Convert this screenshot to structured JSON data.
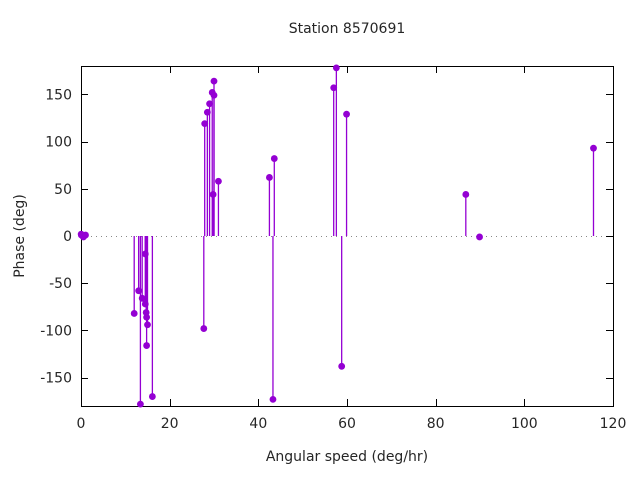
{
  "title": "Station 8570691",
  "chart_data": {
    "type": "stem",
    "title": "Station 8570691",
    "xlabel": "Angular speed (deg/hr)",
    "ylabel": "Phase (deg)",
    "xlim": [
      0,
      120
    ],
    "ylim": [
      -180,
      180
    ],
    "xticks": [
      0,
      20,
      40,
      60,
      80,
      100,
      120
    ],
    "yticks": [
      -150,
      -100,
      -50,
      0,
      50,
      100,
      150
    ],
    "baseline": 0,
    "grid": false,
    "zero_axis_style": "dotted",
    "legend": "none",
    "colors": {
      "series": "#9400d3",
      "border": "#000000",
      "zero_line": "#888888",
      "text": "#262626",
      "background": "#ffffff"
    },
    "series": [
      {
        "name": "phase",
        "marker": "filled-circle",
        "points": [
          [
            0.04,
            2
          ],
          [
            0.08,
            1
          ],
          [
            0.54,
            -1
          ],
          [
            1.02,
            1
          ],
          [
            12.0,
            -82
          ],
          [
            13.0,
            -58
          ],
          [
            13.4,
            -178
          ],
          [
            13.8,
            -66
          ],
          [
            14.5,
            -19
          ],
          [
            14.5,
            -72
          ],
          [
            14.7,
            -81
          ],
          [
            14.8,
            -86
          ],
          [
            15.0,
            -94
          ],
          [
            14.8,
            -116
          ],
          [
            16.1,
            -170
          ],
          [
            27.7,
            -98
          ],
          [
            27.9,
            119
          ],
          [
            28.5,
            131
          ],
          [
            29.0,
            140
          ],
          [
            29.6,
            152
          ],
          [
            30.0,
            149
          ],
          [
            30.0,
            164
          ],
          [
            29.8,
            44
          ],
          [
            31.0,
            58
          ],
          [
            42.5,
            62
          ],
          [
            43.3,
            -173
          ],
          [
            43.6,
            82
          ],
          [
            57.0,
            157
          ],
          [
            57.6,
            178
          ],
          [
            58.8,
            -138
          ],
          [
            59.9,
            129
          ],
          [
            86.8,
            44
          ],
          [
            89.9,
            -1
          ],
          [
            115.6,
            93
          ]
        ]
      }
    ]
  }
}
